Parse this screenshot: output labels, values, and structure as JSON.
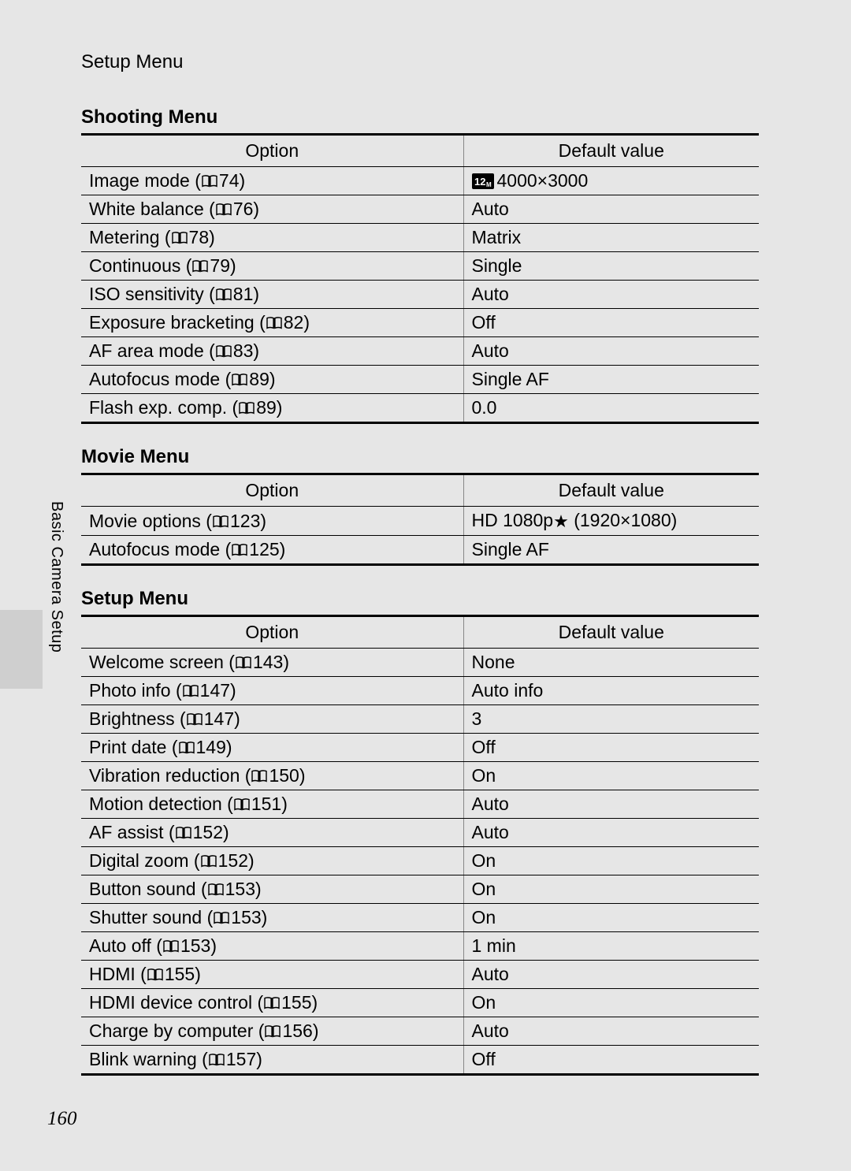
{
  "header": {
    "title": "Setup Menu"
  },
  "sideTab": {
    "label": "Basic Camera Setup"
  },
  "pageNumber": "160",
  "columns": {
    "option": "Option",
    "value": "Default value"
  },
  "sections": [
    {
      "title": "Shooting Menu",
      "rows": [
        {
          "label": "Image mode",
          "ref": "74",
          "value": "4000×3000",
          "valuePrefixIcon": "12m"
        },
        {
          "label": "White balance",
          "ref": "76",
          "value": "Auto"
        },
        {
          "label": "Metering",
          "ref": "78",
          "value": "Matrix"
        },
        {
          "label": "Continuous",
          "ref": "79",
          "value": "Single"
        },
        {
          "label": "ISO sensitivity",
          "ref": "81",
          "value": "Auto"
        },
        {
          "label": "Exposure bracketing",
          "ref": "82",
          "value": "Off"
        },
        {
          "label": "AF area mode",
          "ref": "83",
          "value": "Auto"
        },
        {
          "label": "Autofocus mode",
          "ref": "89",
          "value": "Single AF"
        },
        {
          "label": "Flash exp. comp.",
          "ref": "89",
          "value": "0.0"
        }
      ]
    },
    {
      "title": "Movie Menu",
      "rows": [
        {
          "label": "Movie options",
          "ref": "123",
          "valuePrefix": "HD 1080p",
          "valueStar": true,
          "valueSuffix": " (1920×1080)"
        },
        {
          "label": "Autofocus mode",
          "ref": "125",
          "value": "Single AF"
        }
      ]
    },
    {
      "title": "Setup Menu",
      "rows": [
        {
          "label": "Welcome screen",
          "ref": "143",
          "value": "None"
        },
        {
          "label": "Photo info",
          "ref": "147",
          "value": "Auto info"
        },
        {
          "label": "Brightness",
          "ref": "147",
          "value": "3"
        },
        {
          "label": "Print date",
          "ref": "149",
          "value": "Off"
        },
        {
          "label": "Vibration reduction",
          "ref": "150",
          "value": "On"
        },
        {
          "label": "Motion detection",
          "ref": "151",
          "value": "Auto"
        },
        {
          "label": "AF assist",
          "ref": "152",
          "value": "Auto"
        },
        {
          "label": "Digital zoom",
          "ref": "152",
          "value": "On"
        },
        {
          "label": "Button sound",
          "ref": "153",
          "value": "On"
        },
        {
          "label": "Shutter sound",
          "ref": "153",
          "value": "On"
        },
        {
          "label": "Auto off",
          "ref": "153",
          "value": "1 min"
        },
        {
          "label": "HDMI",
          "ref": "155",
          "value": "Auto"
        },
        {
          "label": "HDMI device control",
          "ref": "155",
          "value": "On"
        },
        {
          "label": "Charge by computer",
          "ref": "156",
          "value": "Auto"
        },
        {
          "label": "Blink warning",
          "ref": "157",
          "value": "Off"
        }
      ]
    }
  ],
  "colors": {
    "pageBg": "#e6e6e6",
    "tabBg": "#cfcfcf",
    "rule": "#000000",
    "innerRule": "#888888"
  }
}
